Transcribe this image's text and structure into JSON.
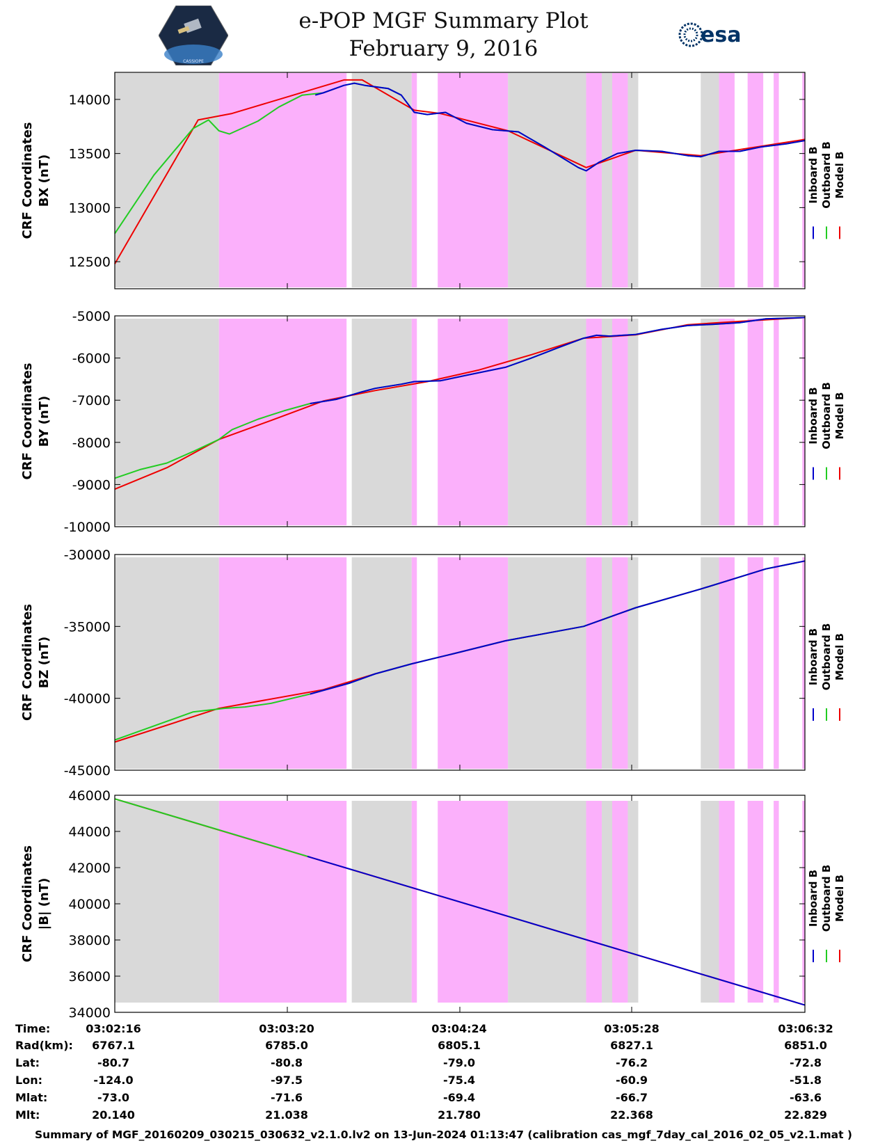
{
  "header": {
    "title": "e-POP MGF Summary Plot",
    "date": "February 9, 2016",
    "left_logo_text": "CASSIOPE",
    "right_logo_text": "esa"
  },
  "colors": {
    "inboard": "#0000cc",
    "outboard": "#22cc22",
    "model": "#ee0000",
    "shade_gray": "#d9d9d9",
    "shade_pink": "#fbb0fb"
  },
  "legend": [
    "Inboard B",
    "Outboard B",
    "Model B"
  ],
  "chart_data": [
    {
      "type": "line",
      "ylabel": "CRF Coordinates",
      "ylabel2": "BX (nT)",
      "ylim": [
        12250,
        14250
      ],
      "yticks": [
        12500,
        13000,
        13500,
        14000
      ],
      "xlim": [
        0,
        265
      ],
      "shading": [
        {
          "from": 0,
          "to": 40,
          "color": "gray"
        },
        {
          "from": 40,
          "to": 89,
          "color": "pink"
        },
        {
          "from": 91,
          "to": 114,
          "color": "gray"
        },
        {
          "from": 114,
          "to": 116,
          "color": "pink"
        },
        {
          "from": 124,
          "to": 151,
          "color": "pink"
        },
        {
          "from": 151,
          "to": 181,
          "color": "gray"
        },
        {
          "from": 181,
          "to": 187,
          "color": "pink"
        },
        {
          "from": 187,
          "to": 191,
          "color": "gray"
        },
        {
          "from": 191,
          "to": 197,
          "color": "pink"
        },
        {
          "from": 197,
          "to": 201,
          "color": "gray"
        },
        {
          "from": 225,
          "to": 232,
          "color": "gray"
        },
        {
          "from": 232,
          "to": 238,
          "color": "pink"
        },
        {
          "from": 243,
          "to": 249,
          "color": "pink"
        },
        {
          "from": 253,
          "to": 255,
          "color": "pink"
        },
        {
          "from": 264,
          "to": 265,
          "color": "pink"
        }
      ],
      "series": [
        {
          "name": "Model B",
          "color": "model",
          "x": [
            0,
            32,
            45,
            88,
            95,
            115,
            125,
            151,
            181,
            200,
            225,
            265
          ],
          "y": [
            12480,
            13810,
            13870,
            14180,
            14180,
            13900,
            13870,
            13710,
            13370,
            13530,
            13480,
            13630
          ]
        },
        {
          "name": "Outboard B",
          "color": "outboard",
          "x": [
            0,
            15,
            30,
            36,
            40,
            44,
            55,
            63,
            72,
            80,
            88,
            92,
            96,
            105,
            110,
            115,
            120,
            127,
            135,
            145,
            155,
            165,
            178,
            181,
            186,
            193,
            200,
            210,
            220,
            225,
            232,
            240,
            248,
            258,
            265
          ],
          "y": [
            12760,
            13300,
            13730,
            13810,
            13710,
            13680,
            13800,
            13930,
            14040,
            14060,
            14130,
            14150,
            14130,
            14100,
            14040,
            13880,
            13860,
            13880,
            13780,
            13720,
            13700,
            13560,
            13370,
            13340,
            13420,
            13500,
            13530,
            13520,
            13480,
            13470,
            13520,
            13520,
            13560,
            13590,
            13620
          ]
        },
        {
          "name": "Inboard B",
          "color": "inboard",
          "x": [
            77,
            80,
            88,
            92,
            96,
            105,
            110,
            115,
            120,
            127,
            135,
            145,
            155,
            165,
            178,
            181,
            186,
            193,
            200,
            210,
            220,
            225,
            232,
            240,
            248,
            258,
            265
          ],
          "y": [
            14040,
            14060,
            14130,
            14150,
            14130,
            14100,
            14040,
            13880,
            13860,
            13880,
            13780,
            13720,
            13700,
            13560,
            13370,
            13340,
            13420,
            13500,
            13530,
            13520,
            13480,
            13470,
            13520,
            13520,
            13560,
            13590,
            13620
          ]
        }
      ]
    },
    {
      "type": "line",
      "ylabel": "CRF Coordinates",
      "ylabel2": "BY (nT)",
      "ylim": [
        -10000,
        -5000
      ],
      "yticks": [
        -10000,
        -9000,
        -8000,
        -7000,
        -6000,
        -5000
      ],
      "xlim": [
        0,
        265
      ],
      "shading": "same_as_first",
      "series": [
        {
          "name": "Model B",
          "color": "model",
          "x": [
            0,
            20,
            40,
            60,
            80,
            100,
            120,
            140,
            160,
            180,
            200,
            220,
            240,
            265
          ],
          "y": [
            -9110,
            -8600,
            -7930,
            -7480,
            -7020,
            -6770,
            -6560,
            -6280,
            -5920,
            -5530,
            -5450,
            -5210,
            -5130,
            -5040
          ]
        },
        {
          "name": "Outboard B",
          "color": "outboard",
          "x": [
            0,
            10,
            20,
            30,
            40,
            45,
            55,
            65,
            75,
            85,
            95,
            100,
            110,
            115,
            125,
            135,
            150,
            160,
            170,
            180,
            185,
            190,
            200,
            210,
            220,
            230,
            240,
            250,
            265
          ],
          "y": [
            -8850,
            -8640,
            -8490,
            -8220,
            -7930,
            -7700,
            -7450,
            -7250,
            -7080,
            -6980,
            -6800,
            -6720,
            -6620,
            -6560,
            -6540,
            -6410,
            -6220,
            -6000,
            -5760,
            -5530,
            -5460,
            -5480,
            -5440,
            -5320,
            -5230,
            -5200,
            -5160,
            -5070,
            -5040
          ]
        },
        {
          "name": "Inboard B",
          "color": "inboard",
          "x": [
            75,
            85,
            95,
            100,
            110,
            115,
            125,
            135,
            150,
            160,
            170,
            180,
            185,
            190,
            200,
            210,
            220,
            230,
            240,
            250,
            265
          ],
          "y": [
            -7080,
            -6980,
            -6800,
            -6720,
            -6620,
            -6560,
            -6540,
            -6410,
            -6220,
            -6000,
            -5760,
            -5530,
            -5460,
            -5480,
            -5440,
            -5320,
            -5230,
            -5200,
            -5160,
            -5070,
            -5040
          ]
        }
      ]
    },
    {
      "type": "line",
      "ylabel": "CRF Coordinates",
      "ylabel2": "BZ (nT)",
      "ylim": [
        -45000,
        -30000
      ],
      "yticks": [
        -45000,
        -40000,
        -35000,
        -30000
      ],
      "xlim": [
        0,
        265
      ],
      "shading": "same_as_first",
      "series": [
        {
          "name": "Model B",
          "color": "model",
          "x": [
            0,
            40,
            80,
            100,
            114,
            130,
            150,
            180,
            200,
            225,
            250,
            265
          ],
          "y": [
            -43040,
            -40700,
            -39400,
            -38300,
            -37600,
            -36900,
            -36000,
            -35000,
            -33700,
            -32400,
            -31000,
            -30450
          ]
        },
        {
          "name": "Outboard B",
          "color": "outboard",
          "x": [
            0,
            30,
            42,
            50,
            60,
            75,
            90,
            100,
            114,
            130,
            150,
            180,
            200,
            225,
            250,
            265
          ],
          "y": [
            -42900,
            -40950,
            -40700,
            -40600,
            -40350,
            -39700,
            -38950,
            -38300,
            -37600,
            -36900,
            -36000,
            -35000,
            -33700,
            -32400,
            -31000,
            -30450
          ]
        },
        {
          "name": "Inboard B",
          "color": "inboard",
          "x": [
            75,
            90,
            100,
            114,
            130,
            150,
            180,
            200,
            225,
            250,
            265
          ],
          "y": [
            -39700,
            -38950,
            -38300,
            -37600,
            -36900,
            -36000,
            -35000,
            -33700,
            -32400,
            -31000,
            -30450
          ]
        }
      ]
    },
    {
      "type": "line",
      "ylabel": "CRF Coordinates",
      "ylabel2": "|B| (nT)",
      "ylim": [
        34000,
        46000
      ],
      "yticks": [
        34000,
        36000,
        38000,
        40000,
        42000,
        44000,
        46000
      ],
      "xlim": [
        0,
        265
      ],
      "shading": "same_as_first",
      "series": [
        {
          "name": "Model B",
          "color": "model",
          "x": [
            0,
            265
          ],
          "y": [
            45800,
            34400
          ]
        },
        {
          "name": "Outboard B",
          "color": "outboard",
          "x": [
            0,
            75
          ],
          "y": [
            45800,
            42580
          ]
        },
        {
          "name": "Inboard B",
          "color": "inboard",
          "x": [
            74,
            265
          ],
          "y": [
            42620,
            34400
          ]
        }
      ]
    }
  ],
  "info_table": {
    "labels": [
      "Time:",
      "Rad(km):",
      "Lat:",
      "Lon:",
      "Mlat:",
      "Mlt:"
    ],
    "columns": [
      [
        "03:02:16",
        "6767.1",
        "-80.7",
        "-124.0",
        "-73.0",
        "20.140"
      ],
      [
        "03:03:20",
        "6785.0",
        "-80.8",
        "-97.5",
        "-71.6",
        "21.038"
      ],
      [
        "03:04:24",
        "6805.1",
        "-79.0",
        "-75.4",
        "-69.4",
        "21.780"
      ],
      [
        "03:05:28",
        "6827.1",
        "-76.2",
        "-60.9",
        "-66.7",
        "22.368"
      ],
      [
        "03:06:32",
        "6851.0",
        "-72.8",
        "-51.8",
        "-63.6",
        "22.829"
      ]
    ]
  },
  "footer": "Summary of MGF_20160209_030215_030632_v2.1.0.lv2 on 13-Jun-2024 01:13:47 (calibration cas_mgf_7day_cal_2016_02_05_v2.1.mat )"
}
